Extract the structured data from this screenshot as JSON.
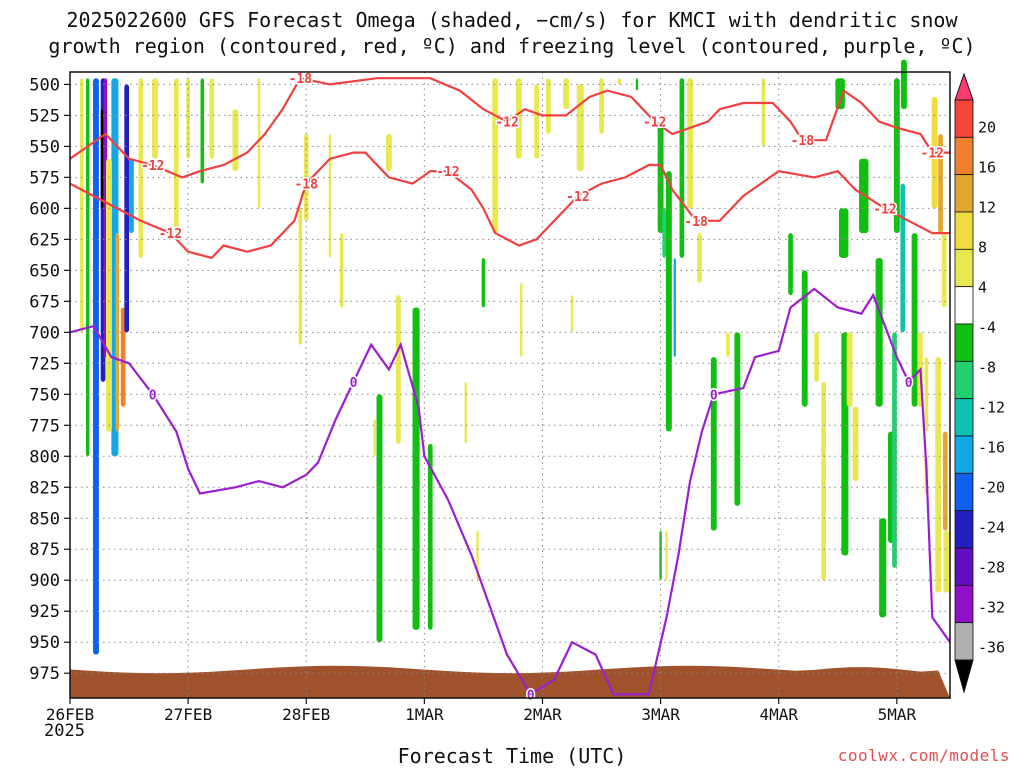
{
  "title_line1": "2025022600 GFS Forecast Omega (shaded, −cm/s) for KMCI with dendritic snow",
  "title_line2": "growth region (contoured, red, ºC) and freezing level (contoured, purple, ºC)",
  "xlabel": "Forecast Time (UTC)",
  "year_label": "2025",
  "credit": "coolwx.com/models",
  "colors": {
    "dgz_contour": "#f04040",
    "freezing_contour": "#9b1fd0",
    "terrain": "#a0522d",
    "grid": "#888888"
  },
  "chart_data": {
    "type": "heatmap",
    "x_ticks": [
      "26FEB",
      "27FEB",
      "28FEB",
      "1MAR",
      "2MAR",
      "3MAR",
      "4MAR",
      "5MAR"
    ],
    "y_ticks": [
      500,
      525,
      550,
      575,
      600,
      625,
      650,
      675,
      700,
      725,
      750,
      775,
      800,
      825,
      850,
      875,
      900,
      925,
      950,
      975
    ],
    "ylim_hpa": [
      490,
      995
    ],
    "xlim_days": [
      0,
      7.45
    ],
    "colorbar": {
      "levels": [
        20,
        16,
        12,
        8,
        4,
        -4,
        -8,
        -12,
        -16,
        -20,
        -24,
        -28,
        -32,
        -36
      ],
      "colors": [
        "#ff3a6e",
        "#f5443a",
        "#f08030",
        "#e0a830",
        "#f0dc40",
        "#e8e850",
        "#ffffff",
        "#10c010",
        "#20d070",
        "#10c0b0",
        "#10a8e8",
        "#1060f0",
        "#2020c0",
        "#6010c0",
        "#9010c8",
        "#b0b0b0",
        "#000000"
      ]
    },
    "contour_labels": {
      "dgz": [
        "-12",
        "-18",
        "-12",
        "-12",
        "-18",
        "-12",
        "-12",
        "-18",
        "-12",
        "-12",
        "-18",
        "-12"
      ],
      "freezing": [
        "0",
        "0",
        "0",
        "0",
        "0"
      ]
    },
    "dgz_top": [
      [
        0,
        560
      ],
      [
        0.3,
        540
      ],
      [
        0.5,
        560
      ],
      [
        0.7,
        565
      ],
      [
        0.95,
        575
      ],
      [
        1.1,
        570
      ],
      [
        1.3,
        565
      ],
      [
        1.5,
        555
      ],
      [
        1.65,
        540
      ],
      [
        1.8,
        520
      ],
      [
        1.95,
        495
      ],
      [
        2.2,
        500
      ],
      [
        2.6,
        495
      ],
      [
        3.05,
        495
      ],
      [
        3.3,
        505
      ],
      [
        3.5,
        520
      ],
      [
        3.7,
        530
      ],
      [
        3.85,
        520
      ],
      [
        4.0,
        525
      ],
      [
        4.2,
        525
      ],
      [
        4.4,
        510
      ],
      [
        4.55,
        505
      ],
      [
        4.75,
        510
      ],
      [
        4.95,
        530
      ],
      [
        5.1,
        540
      ],
      [
        5.4,
        530
      ],
      [
        5.5,
        520
      ],
      [
        5.7,
        515
      ],
      [
        5.95,
        515
      ],
      [
        6.1,
        530
      ],
      [
        6.2,
        545
      ],
      [
        6.4,
        545
      ],
      [
        6.55,
        505
      ],
      [
        6.7,
        515
      ],
      [
        6.85,
        530
      ],
      [
        7.0,
        535
      ],
      [
        7.2,
        540
      ],
      [
        7.3,
        555
      ],
      [
        7.45,
        555
      ]
    ],
    "dgz_bottom": [
      [
        0,
        580
      ],
      [
        0.2,
        590
      ],
      [
        0.4,
        600
      ],
      [
        0.6,
        610
      ],
      [
        0.85,
        620
      ],
      [
        1.0,
        635
      ],
      [
        1.2,
        640
      ],
      [
        1.3,
        630
      ],
      [
        1.5,
        635
      ],
      [
        1.7,
        630
      ],
      [
        1.9,
        610
      ],
      [
        2.0,
        580
      ],
      [
        2.2,
        560
      ],
      [
        2.4,
        555
      ],
      [
        2.5,
        555
      ],
      [
        2.7,
        575
      ],
      [
        2.9,
        580
      ],
      [
        3.05,
        570
      ],
      [
        3.2,
        570
      ],
      [
        3.4,
        585
      ],
      [
        3.5,
        600
      ],
      [
        3.6,
        620
      ],
      [
        3.8,
        630
      ],
      [
        3.95,
        625
      ],
      [
        4.1,
        610
      ],
      [
        4.3,
        590
      ],
      [
        4.5,
        580
      ],
      [
        4.7,
        575
      ],
      [
        4.9,
        565
      ],
      [
        5.0,
        565
      ],
      [
        5.1,
        585
      ],
      [
        5.3,
        610
      ],
      [
        5.5,
        610
      ],
      [
        5.7,
        590
      ],
      [
        6.0,
        570
      ],
      [
        6.3,
        575
      ],
      [
        6.5,
        570
      ],
      [
        6.65,
        585
      ],
      [
        6.9,
        600
      ],
      [
        7.1,
        610
      ],
      [
        7.3,
        620
      ],
      [
        7.45,
        620
      ]
    ],
    "freezing_level": [
      [
        0,
        700
      ],
      [
        0.2,
        695
      ],
      [
        0.35,
        720
      ],
      [
        0.5,
        725
      ],
      [
        0.7,
        750
      ],
      [
        0.9,
        780
      ],
      [
        1.0,
        810
      ],
      [
        1.1,
        830
      ],
      [
        1.4,
        825
      ],
      [
        1.6,
        820
      ],
      [
        1.8,
        825
      ],
      [
        2.0,
        815
      ],
      [
        2.1,
        805
      ],
      [
        2.25,
        770
      ],
      [
        2.4,
        740
      ],
      [
        2.55,
        710
      ],
      [
        2.7,
        730
      ],
      [
        2.8,
        710
      ],
      [
        2.95,
        760
      ],
      [
        3.0,
        800
      ],
      [
        3.2,
        835
      ],
      [
        3.4,
        880
      ],
      [
        3.55,
        920
      ],
      [
        3.7,
        960
      ],
      [
        3.9,
        992
      ],
      [
        4.1,
        980
      ],
      [
        4.25,
        950
      ],
      [
        4.45,
        960
      ],
      [
        4.6,
        992
      ],
      [
        4.9,
        992
      ],
      [
        5.05,
        930
      ],
      [
        5.15,
        880
      ],
      [
        5.25,
        820
      ],
      [
        5.35,
        780
      ],
      [
        5.45,
        750
      ],
      [
        5.7,
        745
      ],
      [
        5.8,
        720
      ],
      [
        6.0,
        715
      ],
      [
        6.1,
        680
      ],
      [
        6.3,
        665
      ],
      [
        6.5,
        680
      ],
      [
        6.7,
        685
      ],
      [
        6.8,
        670
      ],
      [
        7.0,
        720
      ],
      [
        7.1,
        740
      ],
      [
        7.2,
        730
      ],
      [
        7.25,
        810
      ],
      [
        7.3,
        930
      ],
      [
        7.45,
        950
      ]
    ]
  }
}
